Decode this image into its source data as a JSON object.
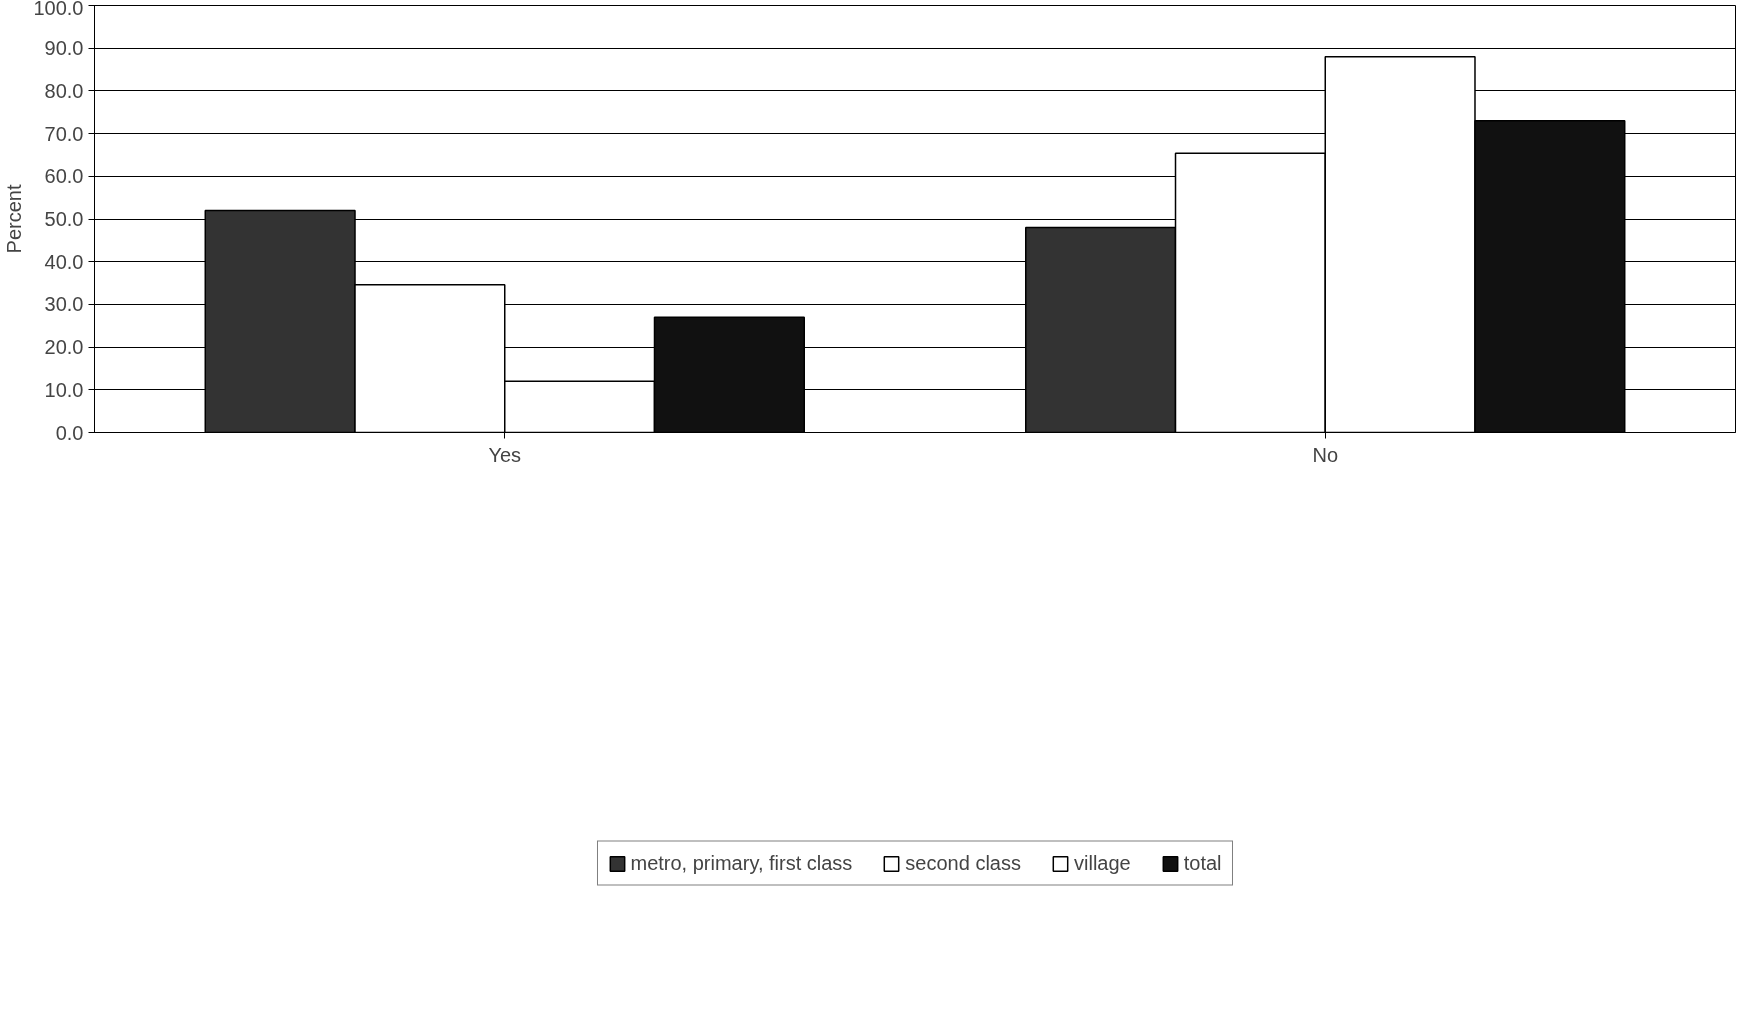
{
  "chart_data": {
    "type": "bar",
    "ylabel": "Percent",
    "categories": [
      "Yes",
      "No"
    ],
    "series": [
      {
        "name": "metro, primary, first class",
        "color": "#333333",
        "values": [
          52.0,
          48.0
        ]
      },
      {
        "name": "second class",
        "color": "#ffffff",
        "values": [
          34.6,
          65.4
        ]
      },
      {
        "name": "village",
        "color": "#ffffff",
        "values": [
          12.0,
          88.0
        ]
      },
      {
        "name": "total",
        "color": "#111111",
        "values": [
          27.0,
          73.0
        ]
      }
    ],
    "ylim": [
      0,
      100
    ],
    "yticks": [
      {
        "value": 0,
        "label": "0.0"
      },
      {
        "value": 10,
        "label": "10.0"
      },
      {
        "value": 20,
        "label": "20.0"
      },
      {
        "value": 30,
        "label": "30.0"
      },
      {
        "value": 40,
        "label": "40.0"
      },
      {
        "value": 50,
        "label": "50.0"
      },
      {
        "value": 60,
        "label": "60.0"
      },
      {
        "value": 70,
        "label": "70.0"
      },
      {
        "value": 80,
        "label": "80.0"
      },
      {
        "value": 90,
        "label": "90.0"
      },
      {
        "value": 100,
        "label": "100.0"
      }
    ],
    "grid": "y",
    "legend": "bottom"
  }
}
